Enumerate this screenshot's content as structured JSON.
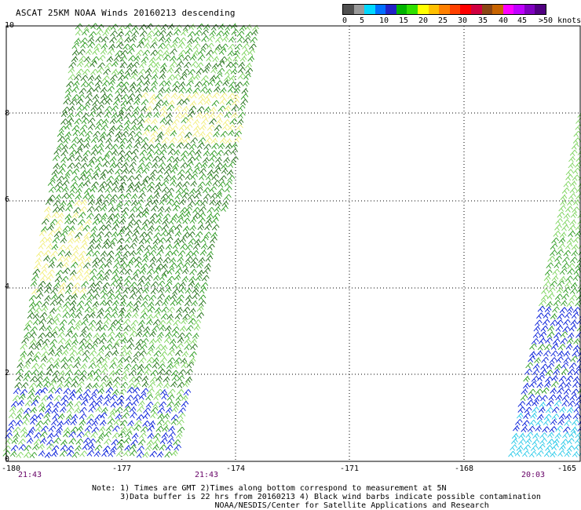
{
  "title": "ASCAT 25KM NOAA Winds 20160213 descending",
  "scale": {
    "labels": [
      "0",
      "5",
      "10",
      "15",
      "20",
      "25",
      "30",
      "35",
      "40",
      "45",
      ">50 knots"
    ],
    "colors": [
      "#505050",
      "#9a9a9a",
      "#00d8ff",
      "#0070ff",
      "#2222c8",
      "#00b400",
      "#30e000",
      "#ffff00",
      "#ffc000",
      "#ff8000",
      "#ff4000",
      "#ff0000",
      "#d00040",
      "#8b4513",
      "#c86400",
      "#ff00ff",
      "#c000ff",
      "#8000c0",
      "#500080"
    ]
  },
  "axes": {
    "y_ticks": [
      "10",
      "8",
      "6",
      "4",
      "2",
      "0"
    ],
    "x_ticks": [
      "-180",
      "-177",
      "-174",
      "-171",
      "-168",
      "-165"
    ],
    "times": [
      "21:43",
      "21:43",
      "20:03"
    ]
  },
  "notes": [
    "Note: 1) Times are GMT 2)Times along bottom correspond to measurement at 5N",
    "      3)Data buffer is 22 hrs from 20160213 4) Black wind barbs indicate possible contamination",
    "                          NOAA/NESDIS/Center for Satellite Applications and Research"
  ],
  "barb_colors": {
    "green": "#2a9a1e",
    "dark_green": "#1f6e14",
    "light_green": "#7ad35a",
    "yellow": "#f2ee7a",
    "blue": "#0018d8",
    "cyan": "#22c8e8"
  }
}
